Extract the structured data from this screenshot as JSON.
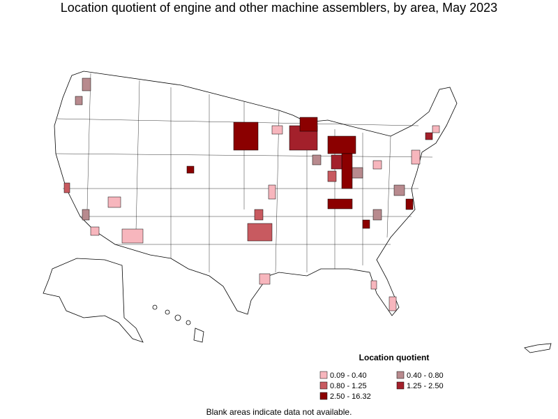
{
  "header": {
    "title": "Location quotient of engine and other machine assemblers, by area, May 2023"
  },
  "legend": {
    "title": "Location quotient",
    "items": [
      {
        "label": "0.09 - 0.40",
        "color": "#f7b6bd"
      },
      {
        "label": "0.40 - 0.80",
        "color": "#b88a8e"
      },
      {
        "label": "0.80 - 1.25",
        "color": "#c85a60"
      },
      {
        "label": "1.25 - 2.50",
        "color": "#a3202b"
      },
      {
        "label": "2.50 - 16.32",
        "color": "#8b0000"
      }
    ]
  },
  "footnote": "Blank areas indicate data not available."
}
